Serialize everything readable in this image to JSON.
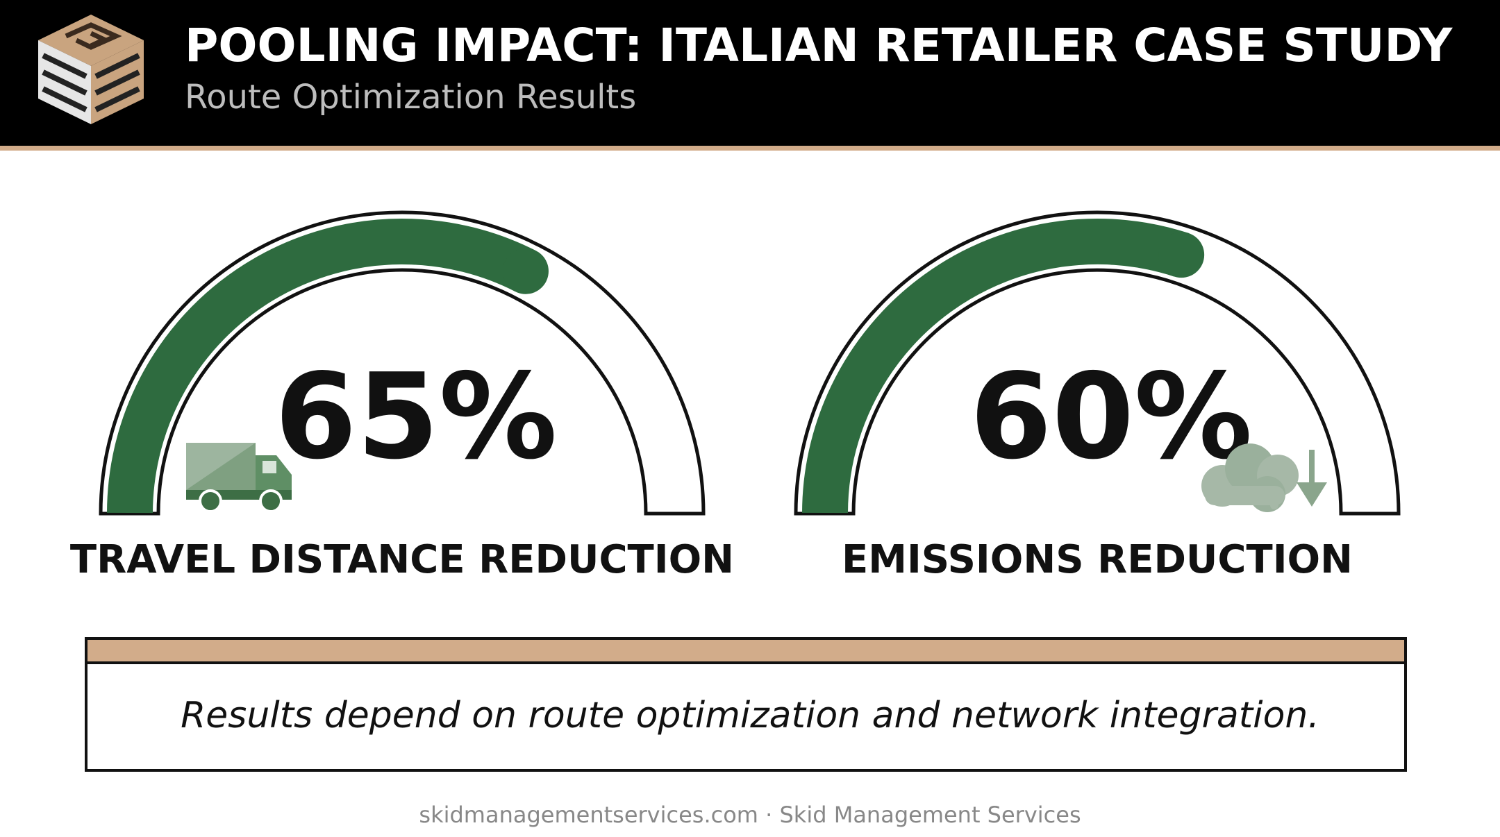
{
  "header": {
    "title": "POOLING IMPACT: ITALIAN RETAILER CASE STUDY",
    "subtitle": "Route Optimization Results"
  },
  "chart_data": [
    {
      "type": "gauge",
      "title": "TRAVEL DISTANCE REDUCTION",
      "values": [
        65
      ],
      "value_labels": [
        "65%"
      ],
      "ylim": [
        0,
        100
      ],
      "color": "#2e6b3f"
    },
    {
      "type": "gauge",
      "title": "EMISSIONS REDUCTION",
      "values": [
        60
      ],
      "value_labels": [
        "60%"
      ],
      "ylim": [
        0,
        100
      ],
      "color": "#2e6b3f"
    }
  ],
  "note": "Results depend on route optimization and network integration.",
  "footer": "skidmanagementservices.com · Skid Management Services"
}
